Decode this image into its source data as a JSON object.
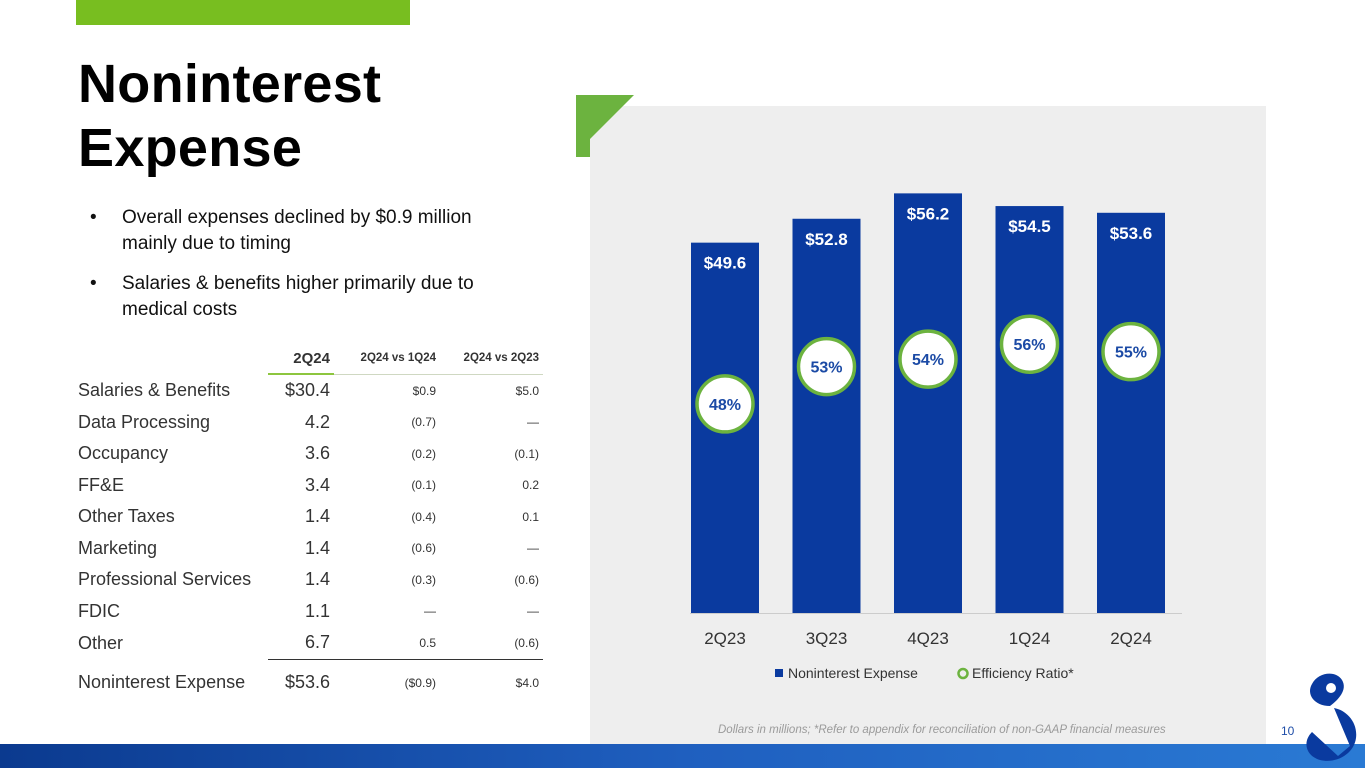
{
  "slide": {
    "title_line1": "Noninterest",
    "title_line2": "Expense",
    "bullets": [
      "Overall expenses declined by $0.9 million mainly due to timing",
      "Salaries & benefits higher primarily due to medical costs"
    ],
    "footnote": "Dollars in millions; *Refer to appendix for reconciliation of non-GAAP financial measures",
    "page_number": "10"
  },
  "table": {
    "headers": [
      "2Q24",
      "2Q24 vs 1Q24",
      "2Q24 vs 2Q23"
    ],
    "rows": [
      {
        "label": "Salaries & Benefits",
        "q": "$30.4",
        "vs_q": "$0.9",
        "vs_y": "$5.0"
      },
      {
        "label": "Data Processing",
        "q": "4.2",
        "vs_q": "(0.7)",
        "vs_y": "—"
      },
      {
        "label": "Occupancy",
        "q": "3.6",
        "vs_q": "(0.2)",
        "vs_y": "(0.1)"
      },
      {
        "label": "FF&E",
        "q": "3.4",
        "vs_q": "(0.1)",
        "vs_y": "0.2"
      },
      {
        "label": "Other Taxes",
        "q": "1.4",
        "vs_q": "(0.4)",
        "vs_y": "0.1"
      },
      {
        "label": "Marketing",
        "q": "1.4",
        "vs_q": "(0.6)",
        "vs_y": "—"
      },
      {
        "label": "Professional Services",
        "q": "1.4",
        "vs_q": "(0.3)",
        "vs_y": "(0.6)"
      },
      {
        "label": "FDIC",
        "q": "1.1",
        "vs_q": "—",
        "vs_y": "—"
      },
      {
        "label": "Other",
        "q": "6.7",
        "vs_q": "0.5",
        "vs_y": "(0.6)"
      },
      {
        "label": "Noninterest Expense",
        "q": "$53.6",
        "vs_q": "($0.9)",
        "vs_y": "$4.0"
      }
    ]
  },
  "chart_data": {
    "type": "bar",
    "categories": [
      "2Q23",
      "3Q23",
      "4Q23",
      "1Q24",
      "2Q24"
    ],
    "series": [
      {
        "name": "Noninterest Expense",
        "values": [
          49.6,
          52.8,
          56.2,
          54.5,
          53.6
        ],
        "labels": [
          "$49.6",
          "$52.8",
          "$56.2",
          "$54.5",
          "$53.6"
        ]
      },
      {
        "name": "Efficiency Ratio*",
        "values": [
          48,
          53,
          54,
          56,
          55
        ],
        "labels": [
          "48%",
          "53%",
          "54%",
          "56%",
          "55%"
        ]
      }
    ],
    "ylim": [
      0,
      60
    ],
    "ratio_ylim": [
      20,
      80
    ],
    "legend": "bottom",
    "colors": {
      "bar": "#0a3a9f",
      "ratio_ring": "#6cb33f",
      "ratio_text": "#1b4aa5",
      "baseline": "#cccccc",
      "tick": "#333333"
    }
  },
  "colors": {
    "accent_green": "#78be20",
    "brand_blue": "#0b3a8f"
  }
}
